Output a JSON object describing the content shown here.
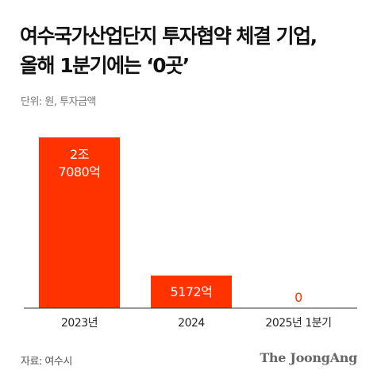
{
  "title": {
    "line1": "여수국가산업단지 투자협약 체결 기업,",
    "line2": "올해 1분기에는 ‘0곳’"
  },
  "unit_note": "단위: 원, 투자금액",
  "source": "자료: 여수시",
  "logo": "The JoongAng",
  "colors": {
    "bar": "#ff3300",
    "axis": "#333333",
    "zero_label": "#ff3300"
  },
  "chart_data": {
    "type": "bar",
    "categories": [
      "2023년",
      "2024",
      "2025년 1분기"
    ],
    "values": [
      27080,
      5172,
      0
    ],
    "value_unit": "억원",
    "data_labels": [
      [
        "2조",
        "7080억"
      ],
      [
        "5172억"
      ],
      [
        "0"
      ]
    ],
    "title": "",
    "xlabel": "",
    "ylabel": "",
    "ylim": [
      0,
      27080
    ],
    "grid": false,
    "legend": "none"
  }
}
